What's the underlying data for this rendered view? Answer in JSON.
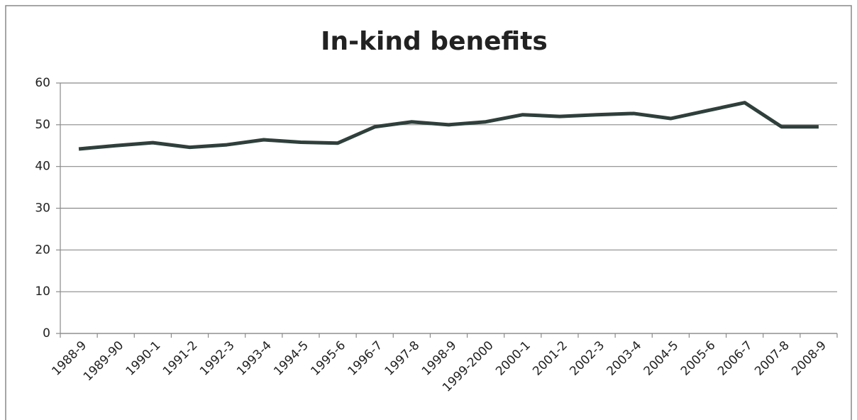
{
  "chart_data": {
    "type": "line",
    "title": "In-kind benefits",
    "categories": [
      "1988-9",
      "1989-90",
      "1990-1",
      "1991-2",
      "1992-3",
      "1993-4",
      "1994-5",
      "1995-6",
      "1996-7",
      "1997-8",
      "1998-9",
      "1999-2000",
      "2000-1",
      "2001-2",
      "2002-3",
      "2003-4",
      "2004-5",
      "2005-6",
      "2006-7",
      "2007-8",
      "2008-9"
    ],
    "series": [
      {
        "name": "In-kind benefits",
        "color": "#2f3f3b",
        "values": [
          44.2,
          45.0,
          45.7,
          44.6,
          45.2,
          46.4,
          45.8,
          45.6,
          49.5,
          50.7,
          50.0,
          50.7,
          52.4,
          52.0,
          52.4,
          52.7,
          51.5,
          53.4,
          55.3,
          49.5,
          49.5
        ]
      }
    ],
    "ylim": [
      0,
      60
    ],
    "yticks": [
      0,
      10,
      20,
      30,
      40,
      50,
      60
    ],
    "grid": true
  }
}
